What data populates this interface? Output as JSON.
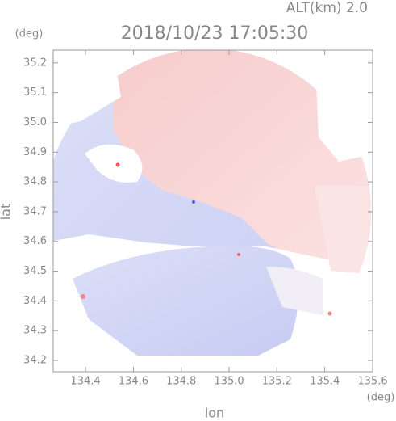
{
  "chart_data": {
    "type": "radar-field",
    "title": "2018/10/23 17:05:30",
    "subtitle": "ALT(km)  2.0",
    "x_label": "lon",
    "y_label": "lat",
    "x_unit": "(deg)",
    "y_unit": "(deg)",
    "xlim": [
      134.265,
      135.6
    ],
    "ylim": [
      34.162,
      35.243
    ],
    "xticks": [
      134.4,
      134.6,
      134.8,
      {
        "value": 135,
        "label": "135.0"
      },
      135.2,
      135.4,
      135.6
    ],
    "yticks": [
      34.2,
      34.3,
      34.4,
      34.5,
      34.6,
      34.7,
      34.8,
      34.9,
      {
        "value": 35,
        "label": "35.0"
      },
      35.1,
      35.2
    ]
  }
}
